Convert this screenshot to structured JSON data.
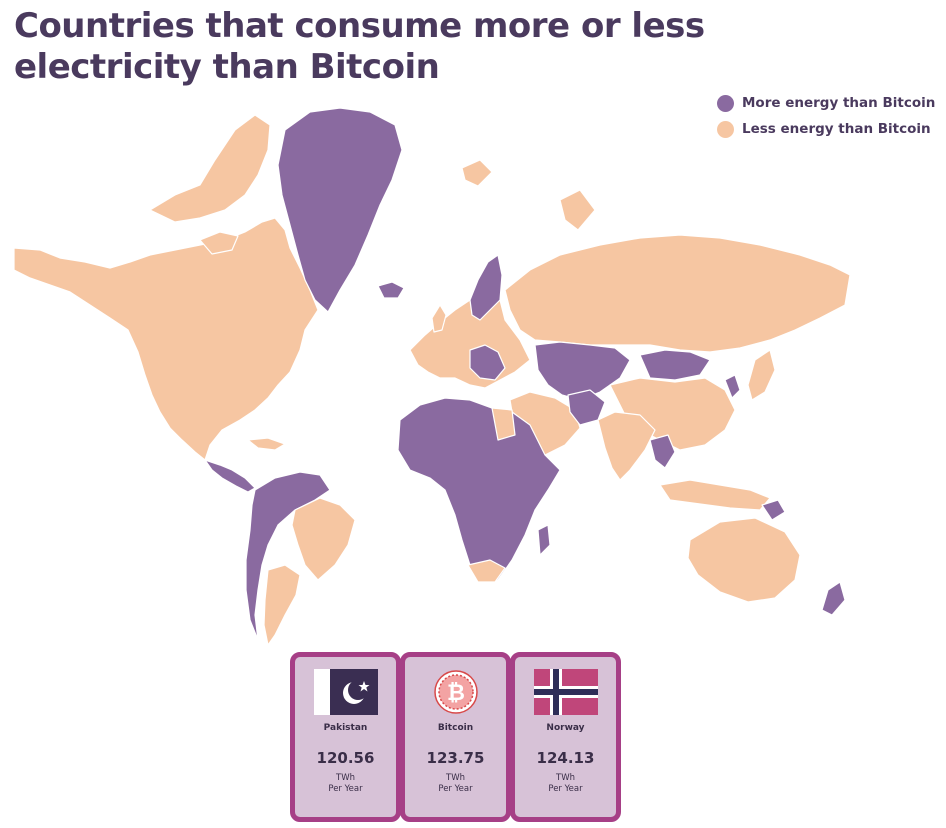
{
  "title": "Countries that consume more or less electricity than Bitcoin",
  "legend": [
    {
      "label": "More energy than Bitcoin",
      "color": "#8a6aa0"
    },
    {
      "label": "Less energy than Bitcoin",
      "color": "#f6c6a2"
    }
  ],
  "colors": {
    "more": "#8a6aa0",
    "less": "#f6c6a2",
    "card_border": "#a63f86",
    "card_bg": "#d7c2d7",
    "text": "#4a3a5e"
  },
  "cards": [
    {
      "name": "Pakistan",
      "value": "120.56",
      "unit_line1": "TWh",
      "unit_line2": "Per Year",
      "icon": "pakistan-flag-icon"
    },
    {
      "name": "Bitcoin",
      "value": "123.75",
      "unit_line1": "TWh",
      "unit_line2": "Per Year",
      "icon": "bitcoin-logo-icon"
    },
    {
      "name": "Norway",
      "value": "124.13",
      "unit_line1": "TWh",
      "unit_line2": "Per Year",
      "icon": "norway-flag-icon"
    }
  ]
}
